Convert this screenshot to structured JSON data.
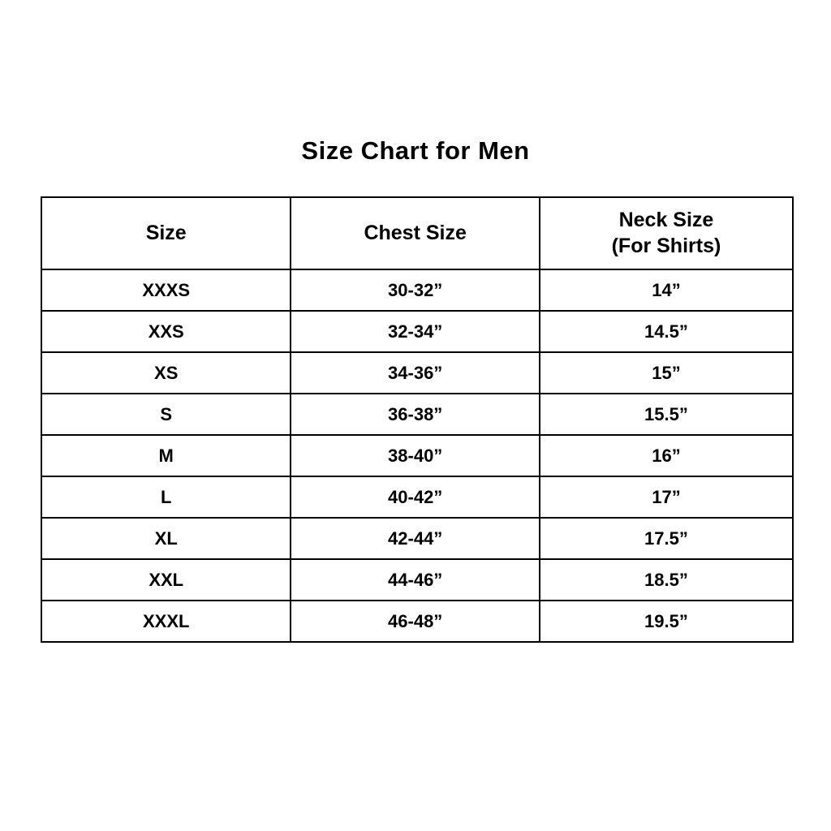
{
  "page": {
    "title": "Size Chart for Men"
  },
  "table": {
    "headers": [
      {
        "label": "Size",
        "sublabel": ""
      },
      {
        "label": "Chest Size",
        "sublabel": ""
      },
      {
        "label": "Neck Size",
        "sublabel": "(For Shirts)"
      }
    ],
    "rows": [
      [
        "XXXS",
        "30-32”",
        "14”"
      ],
      [
        "XXS",
        "32-34”",
        "14.5”"
      ],
      [
        "XS",
        "34-36”",
        "15”"
      ],
      [
        "S",
        "36-38”",
        "15.5”"
      ],
      [
        "M",
        "38-40”",
        "16”"
      ],
      [
        "L",
        "40-42”",
        "17”"
      ],
      [
        "XL",
        "42-44”",
        "17.5”"
      ],
      [
        "XXL",
        "44-46”",
        "18.5”"
      ],
      [
        "XXXL",
        "46-48”",
        "19.5”"
      ]
    ]
  },
  "chart_data": {
    "type": "table",
    "title": "Size Chart for Men",
    "columns": [
      "Size",
      "Chest Size",
      "Neck Size (For Shirts)"
    ],
    "rows": [
      [
        "XXXS",
        "30-32”",
        "14”"
      ],
      [
        "XXS",
        "32-34”",
        "14.5”"
      ],
      [
        "XS",
        "34-36”",
        "15”"
      ],
      [
        "S",
        "36-38”",
        "15.5”"
      ],
      [
        "M",
        "38-40”",
        "16”"
      ],
      [
        "L",
        "40-42”",
        "17”"
      ],
      [
        "XL",
        "42-44”",
        "17.5”"
      ],
      [
        "XXL",
        "44-46”",
        "18.5”"
      ],
      [
        "XXXL",
        "46-48”",
        "19.5”"
      ]
    ],
    "units": "inches",
    "layout_hints": {
      "grid": true,
      "text_align": "center",
      "font_weight": "bold"
    }
  },
  "colors": {
    "background": "#ffffff",
    "border": "#000000",
    "text": "#000000"
  }
}
